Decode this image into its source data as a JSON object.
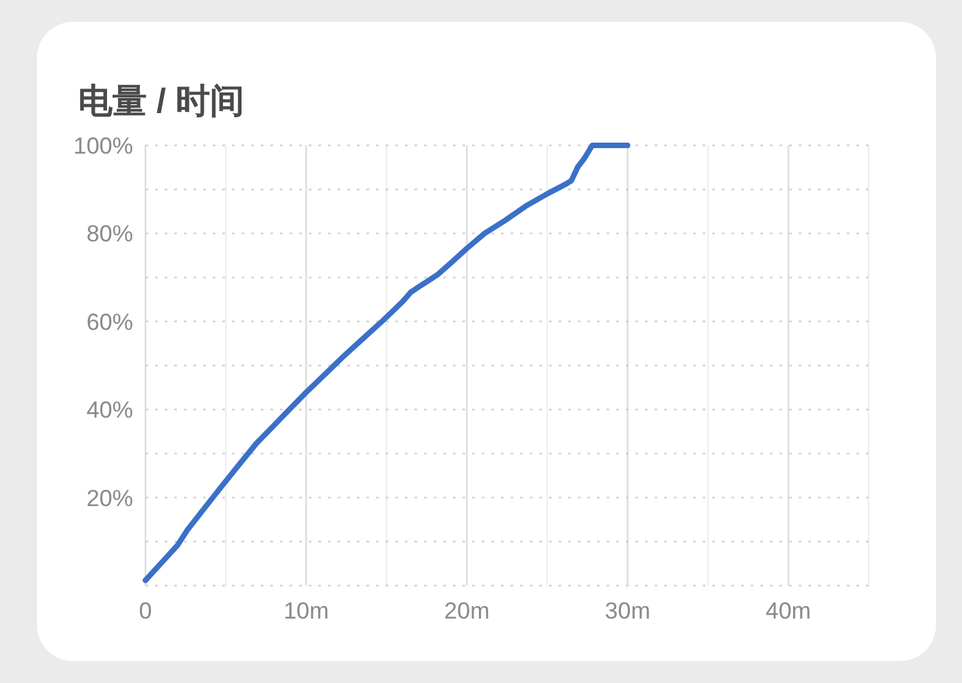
{
  "chart_data": {
    "type": "line",
    "title": "电量 / 时间",
    "x": [
      0,
      1,
      2,
      2.6,
      3.5,
      4.6,
      5.7,
      6.9,
      8,
      9,
      10,
      11.2,
      12.3,
      13.5,
      14.8,
      16,
      16.5,
      17.1,
      17.4,
      18.2,
      19,
      20,
      21.1,
      22.4,
      23.7,
      25,
      26.2,
      26.5,
      26.9,
      27.3,
      27.8,
      30
    ],
    "values": [
      1.2,
      5.2,
      9.2,
      12.6,
      16.8,
      21.9,
      26.9,
      32.3,
      36.4,
      40.2,
      43.9,
      48.1,
      52,
      56,
      60.3,
      64.5,
      66.6,
      68.1,
      68.8,
      70.7,
      73.3,
      76.6,
      80,
      83,
      86.3,
      89,
      91.3,
      92,
      95.1,
      97,
      100,
      100
    ],
    "color": "#3a70c8",
    "line_style": "solid",
    "grid": true,
    "xlim": [
      0,
      45
    ],
    "xticks": [
      0,
      {
        "value": 5,
        "label": null
      },
      {
        "value": 10,
        "label": "10m"
      },
      {
        "value": 15,
        "label": null
      },
      {
        "value": 20,
        "label": "20m"
      },
      {
        "value": 25,
        "label": null
      },
      {
        "value": 30,
        "label": "30m"
      },
      {
        "value": 35,
        "label": null
      },
      {
        "value": 40,
        "label": "40m"
      },
      {
        "value": 45,
        "label": null
      }
    ],
    "ylim": [
      0,
      100
    ],
    "yticks": [
      {
        "value": 0,
        "label": null
      },
      {
        "value": 10,
        "label": null
      },
      {
        "value": 20,
        "label": "20%"
      },
      {
        "value": 30,
        "label": null
      },
      {
        "value": 40,
        "label": "40%"
      },
      {
        "value": 50,
        "label": null
      },
      {
        "value": 60,
        "label": "60%"
      },
      {
        "value": 70,
        "label": null
      },
      {
        "value": 80,
        "label": "80%"
      },
      {
        "value": 90,
        "label": null
      },
      {
        "value": 100,
        "label": "100%"
      }
    ]
  }
}
